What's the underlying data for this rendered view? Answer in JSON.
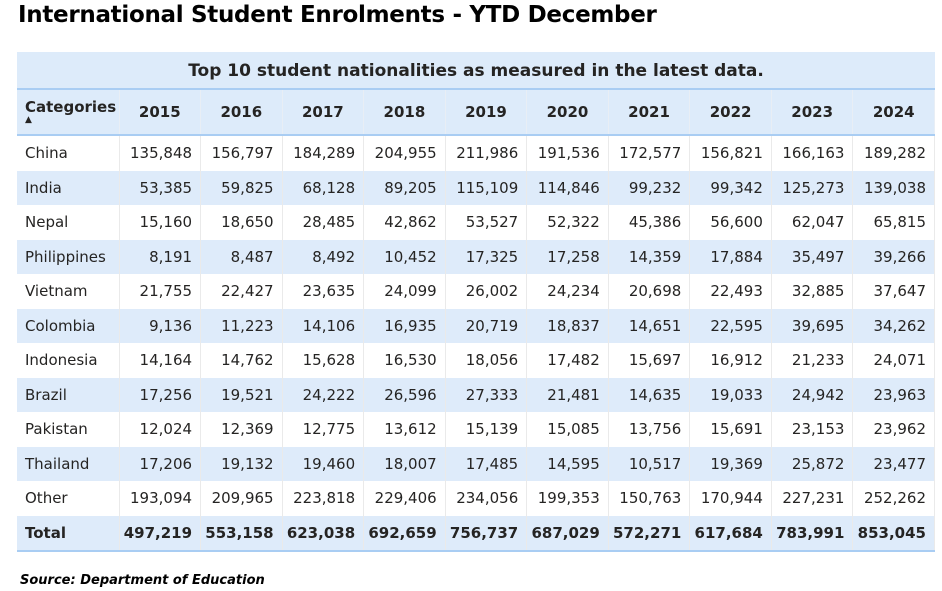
{
  "page_title": "International Student Enrolments - YTD December",
  "source": "Source: Department of Education",
  "colors": {
    "header_bg": "#ddebfa",
    "alt_row_bg": "#deebfa",
    "accent_line": "#a9cdf3"
  },
  "chart_data": {
    "type": "table",
    "title": "Top 10 student nationalities as measured in the latest data.",
    "category_header": "Categories",
    "sort_indicator": "▲",
    "columns": [
      "2015",
      "2016",
      "2017",
      "2018",
      "2019",
      "2020",
      "2021",
      "2022",
      "2023",
      "2024"
    ],
    "rows": [
      {
        "name": "China",
        "values": [
          "135,848",
          "156,797",
          "184,289",
          "204,955",
          "211,986",
          "191,536",
          "172,577",
          "156,821",
          "166,163",
          "189,282"
        ]
      },
      {
        "name": "India",
        "values": [
          "53,385",
          "59,825",
          "68,128",
          "89,205",
          "115,109",
          "114,846",
          "99,232",
          "99,342",
          "125,273",
          "139,038"
        ]
      },
      {
        "name": "Nepal",
        "values": [
          "15,160",
          "18,650",
          "28,485",
          "42,862",
          "53,527",
          "52,322",
          "45,386",
          "56,600",
          "62,047",
          "65,815"
        ]
      },
      {
        "name": "Philippines",
        "values": [
          "8,191",
          "8,487",
          "8,492",
          "10,452",
          "17,325",
          "17,258",
          "14,359",
          "17,884",
          "35,497",
          "39,266"
        ]
      },
      {
        "name": "Vietnam",
        "values": [
          "21,755",
          "22,427",
          "23,635",
          "24,099",
          "26,002",
          "24,234",
          "20,698",
          "22,493",
          "32,885",
          "37,647"
        ]
      },
      {
        "name": "Colombia",
        "values": [
          "9,136",
          "11,223",
          "14,106",
          "16,935",
          "20,719",
          "18,837",
          "14,651",
          "22,595",
          "39,695",
          "34,262"
        ]
      },
      {
        "name": "Indonesia",
        "values": [
          "14,164",
          "14,762",
          "15,628",
          "16,530",
          "18,056",
          "17,482",
          "15,697",
          "16,912",
          "21,233",
          "24,071"
        ]
      },
      {
        "name": "Brazil",
        "values": [
          "17,256",
          "19,521",
          "24,222",
          "26,596",
          "27,333",
          "21,481",
          "14,635",
          "19,033",
          "24,942",
          "23,963"
        ]
      },
      {
        "name": "Pakistan",
        "values": [
          "12,024",
          "12,369",
          "12,775",
          "13,612",
          "15,139",
          "15,085",
          "13,756",
          "15,691",
          "23,153",
          "23,962"
        ]
      },
      {
        "name": "Thailand",
        "values": [
          "17,206",
          "19,132",
          "19,460",
          "18,007",
          "17,485",
          "14,595",
          "10,517",
          "19,369",
          "25,872",
          "23,477"
        ]
      },
      {
        "name": "Other",
        "values": [
          "193,094",
          "209,965",
          "223,818",
          "229,406",
          "234,056",
          "199,353",
          "150,763",
          "170,944",
          "227,231",
          "252,262"
        ]
      }
    ],
    "total": {
      "name": "Total",
      "values": [
        "497,219",
        "553,158",
        "623,038",
        "692,659",
        "756,737",
        "687,029",
        "572,271",
        "617,684",
        "783,991",
        "853,045"
      ]
    }
  }
}
